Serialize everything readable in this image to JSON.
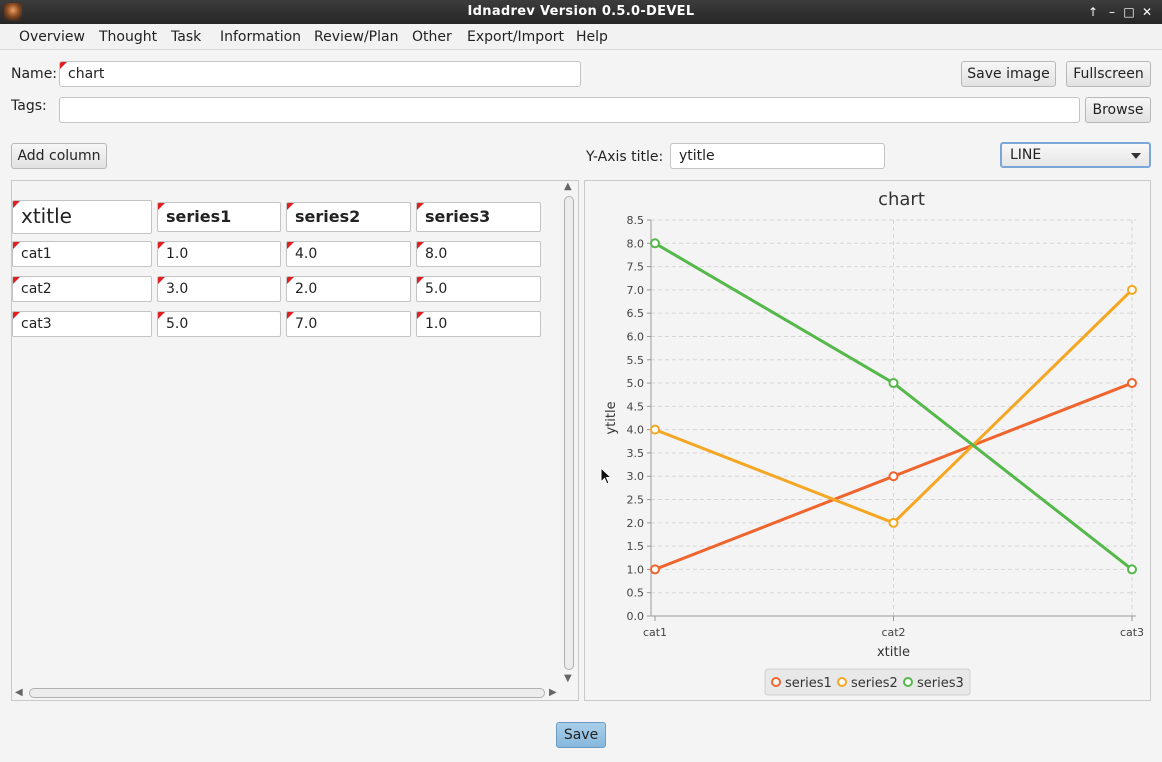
{
  "window": {
    "title": "Idnadrev Version 0.5.0-DEVEL",
    "controls": [
      "↑",
      "–",
      "□",
      "✕"
    ]
  },
  "menu": [
    "Overview",
    "Thought",
    "Task",
    "Information",
    "Review/Plan",
    "Other",
    "Export/Import",
    "Help"
  ],
  "form": {
    "name_label": "Name:",
    "name_value": "chart",
    "tags_label": "Tags:",
    "tags_value": "",
    "save_image_label": "Save image",
    "fullscreen_label": "Fullscreen",
    "browse_label": "Browse",
    "add_column_label": "Add column",
    "yaxis_title_label": "Y-Axis title:",
    "yaxis_title_value": "ytitle",
    "chart_type_value": "LINE",
    "save_label": "Save"
  },
  "table": {
    "headers": [
      "xtitle",
      "series1",
      "series2",
      "series3"
    ],
    "rows": [
      [
        "cat1",
        "1.0",
        "4.0",
        "8.0"
      ],
      [
        "cat2",
        "3.0",
        "2.0",
        "5.0"
      ],
      [
        "cat3",
        "5.0",
        "7.0",
        "1.0"
      ]
    ]
  },
  "chart_data": {
    "type": "line",
    "title": "chart",
    "xlabel": "xtitle",
    "ylabel": "ytitle",
    "categories": [
      "cat1",
      "cat2",
      "cat3"
    ],
    "ylim": [
      0,
      8.5
    ],
    "ytick_step": 0.5,
    "yticks": [
      "0.0",
      "0.5",
      "1.0",
      "1.5",
      "2.0",
      "2.5",
      "3.0",
      "3.5",
      "4.0",
      "4.5",
      "5.0",
      "5.5",
      "6.0",
      "6.5",
      "7.0",
      "7.5",
      "8.0",
      "8.5"
    ],
    "grid": true,
    "legend": "bottom",
    "series": [
      {
        "name": "series1",
        "color": "#f0642e",
        "values": [
          1.0,
          3.0,
          5.0
        ]
      },
      {
        "name": "series2",
        "color": "#f5a623",
        "values": [
          4.0,
          2.0,
          7.0
        ]
      },
      {
        "name": "series3",
        "color": "#55b84a",
        "values": [
          8.0,
          5.0,
          1.0
        ]
      }
    ]
  }
}
